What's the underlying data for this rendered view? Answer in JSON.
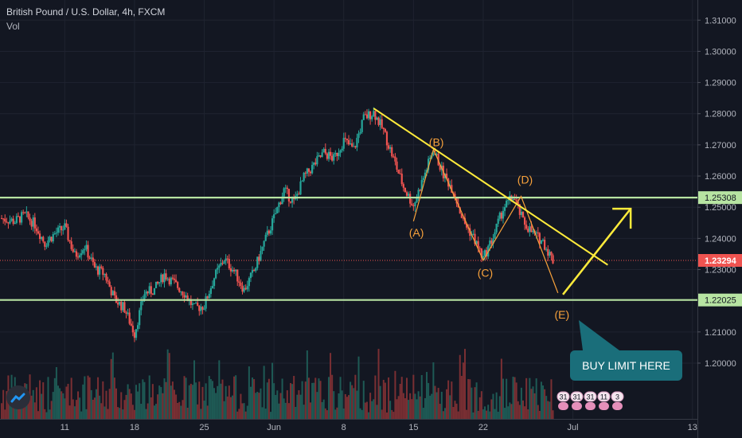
{
  "header": {
    "title": "British Pound / U.S. Dollar, 4h, FXCM",
    "indicator": "Vol"
  },
  "callout": {
    "text": "BUY LIMIT HERE",
    "color": "#1a6e7a"
  },
  "chart_data": {
    "type": "candlestick",
    "symbol": "GBPUSD",
    "interval": "4h",
    "x_tick_labels": [
      "11",
      "18",
      "25",
      "Jun",
      "8",
      "15",
      "22",
      "Jul",
      "13"
    ],
    "x_ticks": [
      {
        "label": "11",
        "x": 2
      },
      {
        "label": "18",
        "x": 9
      },
      {
        "label": "25",
        "x": 16
      },
      {
        "label": "Jun",
        "x": 23
      },
      {
        "label": "8",
        "x": 30
      },
      {
        "label": "15",
        "x": 37
      },
      {
        "label": "22",
        "x": 44
      },
      {
        "label": "Jul",
        "x": 53
      },
      {
        "label": "13",
        "x": 65
      }
    ],
    "x_range": [
      -4.5,
      65.5
    ],
    "y_tick_labels": [
      "1.31000",
      "1.30000",
      "1.29000",
      "1.28000",
      "1.27000",
      "1.26000",
      "1.25000",
      "1.24000",
      "1.23000",
      "1.21000",
      "1.20000"
    ],
    "y_range": [
      1.1945,
      1.3125
    ],
    "close_path": [
      [
        -4.5,
        1.2465
      ],
      [
        -3,
        1.2455
      ],
      [
        -2,
        1.2475
      ],
      [
        -1,
        1.2445
      ],
      [
        0,
        1.2385
      ],
      [
        1,
        1.2415
      ],
      [
        2,
        1.2435
      ],
      [
        3,
        1.2345
      ],
      [
        4,
        1.2375
      ],
      [
        5,
        1.2305
      ],
      [
        6,
        1.2285
      ],
      [
        7,
        1.2205
      ],
      [
        8,
        1.2175
      ],
      [
        9,
        1.2095
      ],
      [
        10,
        1.2225
      ],
      [
        11,
        1.2235
      ],
      [
        12,
        1.2285
      ],
      [
        13,
        1.2255
      ],
      [
        14,
        1.2225
      ],
      [
        15,
        1.2175
      ],
      [
        16,
        1.2185
      ],
      [
        17,
        1.2275
      ],
      [
        18,
        1.2335
      ],
      [
        19,
        1.2295
      ],
      [
        20,
        1.2235
      ],
      [
        21,
        1.2295
      ],
      [
        22,
        1.2385
      ],
      [
        23,
        1.2465
      ],
      [
        24,
        1.2555
      ],
      [
        25,
        1.2515
      ],
      [
        26,
        1.2595
      ],
      [
        27,
        1.2635
      ],
      [
        28,
        1.2675
      ],
      [
        29,
        1.2655
      ],
      [
        30,
        1.2715
      ],
      [
        31,
        1.2685
      ],
      [
        32,
        1.2785
      ],
      [
        33,
        1.2805
      ],
      [
        34,
        1.2745
      ],
      [
        35,
        1.2655
      ],
      [
        36,
        1.2565
      ],
      [
        37,
        1.2505
      ],
      [
        38,
        1.2595
      ],
      [
        39,
        1.2685
      ],
      [
        40,
        1.2605
      ],
      [
        41,
        1.2555
      ],
      [
        42,
        1.2455
      ],
      [
        43,
        1.2405
      ],
      [
        44,
        1.2335
      ],
      [
        45,
        1.2405
      ],
      [
        46,
        1.2495
      ],
      [
        47,
        1.2535
      ],
      [
        48,
        1.2455
      ],
      [
        49,
        1.2415
      ],
      [
        50,
        1.239
      ],
      [
        51,
        1.2329
      ]
    ],
    "price_levels": [
      {
        "label": "1.25308",
        "value": 1.25308,
        "color": "#b7e4a2",
        "style": "solid"
      },
      {
        "label": "1.22025",
        "value": 1.22025,
        "color": "#b7e4a2",
        "style": "solid"
      },
      {
        "label": "1.23294",
        "value": 1.23294,
        "color": "#ef5350",
        "style": "dotted",
        "current": true
      }
    ],
    "wave_labels": [
      {
        "label": "(A)",
        "x": 37.3,
        "y": 1.2415
      },
      {
        "label": "(B)",
        "x": 39.3,
        "y": 1.2705
      },
      {
        "label": "(C)",
        "x": 44.2,
        "y": 1.2287
      },
      {
        "label": "(D)",
        "x": 48.2,
        "y": 1.2585
      },
      {
        "label": "(E)",
        "x": 51.9,
        "y": 1.2152
      }
    ],
    "wave_path": [
      [
        37.0,
        1.2455
      ],
      [
        39.0,
        1.2685
      ],
      [
        44.0,
        1.233
      ],
      [
        47.8,
        1.2535
      ],
      [
        51.5,
        1.2225
      ]
    ],
    "trendline": [
      [
        33.0,
        1.2817
      ],
      [
        56.5,
        1.2315
      ]
    ],
    "projection_arrow": [
      [
        52.0,
        1.222
      ],
      [
        58.8,
        1.2495
      ]
    ],
    "volume_badges": [
      "31",
      "31",
      "31",
      "11",
      "3"
    ],
    "colors": {
      "up": "#26a69a",
      "down": "#ef5350",
      "annotation": "#ffeb3b",
      "wave": "#f7a13b",
      "background": "#131722"
    }
  }
}
